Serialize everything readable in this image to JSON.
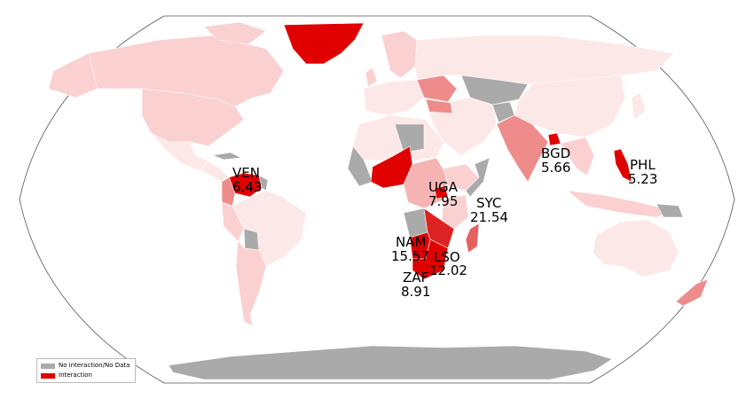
{
  "colors": {
    "no_data": "#aaaaaa",
    "interaction": "#e00000",
    "ocean": "#ffffff",
    "border": "#ffffff",
    "outline": "#555555",
    "shades": [
      "#fde8e8",
      "#fad0d0",
      "#f5b3b3",
      "#ee8c8c",
      "#e66060",
      "#dd2222"
    ]
  },
  "legend": {
    "items": [
      {
        "label": "No interaction/No Data",
        "color": "#aaaaaa"
      },
      {
        "label": "Interaction",
        "color": "#e00000"
      }
    ]
  },
  "annotations": [
    {
      "code": "VEN",
      "value": "6.43"
    },
    {
      "code": "BGD",
      "value": "5.66"
    },
    {
      "code": "PHL",
      "value": "5.23"
    },
    {
      "code": "UGA",
      "value": "7.95"
    },
    {
      "code": "SYC",
      "value": "21.54"
    },
    {
      "code": "NAM",
      "value": "15.57"
    },
    {
      "code": "LSO",
      "value": "12.02"
    },
    {
      "code": "ZAF",
      "value": "8.91"
    }
  ]
}
